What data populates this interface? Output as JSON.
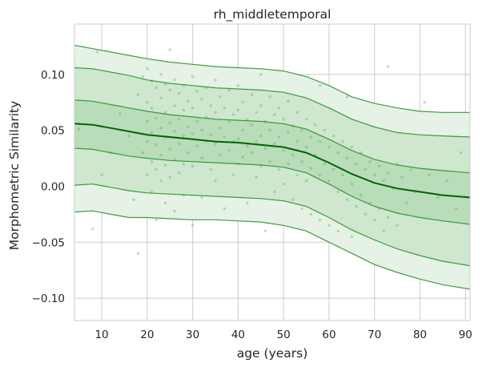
{
  "chart_data": {
    "type": "area",
    "title": "rh_middletemporal",
    "xlabel": "age (years)",
    "ylabel": "Morphometric Similarity",
    "xlim": [
      4,
      91
    ],
    "ylim": [
      -0.12,
      0.145
    ],
    "xticks": [
      10,
      20,
      30,
      40,
      50,
      60,
      70,
      80,
      90
    ],
    "xtick_labels": [
      "10",
      "20",
      "30",
      "40",
      "50",
      "60",
      "70",
      "80",
      "90"
    ],
    "yticks": [
      -0.1,
      -0.05,
      0.0,
      0.05,
      0.1
    ],
    "ytick_labels": [
      "−0.10",
      "−0.05",
      "0.00",
      "0.05",
      "0.10"
    ],
    "grid": true,
    "colors": {
      "median": "#006400",
      "centile": "#228B22",
      "band_outer": "#e6f2e6",
      "band_mid": "#cfe7cf",
      "band_inner": "#b9dcb9",
      "points": "#4caf50",
      "grid": "#cccccc",
      "axes_bg": "#ffffff"
    },
    "centile_x": [
      4,
      8,
      12,
      16,
      20,
      25,
      30,
      35,
      40,
      45,
      50,
      55,
      60,
      65,
      70,
      75,
      80,
      85,
      91
    ],
    "centiles": [
      {
        "name": "p1",
        "values": [
          -0.023,
          -0.022,
          -0.025,
          -0.028,
          -0.028,
          -0.029,
          -0.03,
          -0.03,
          -0.031,
          -0.032,
          -0.035,
          -0.04,
          -0.05,
          -0.06,
          -0.07,
          -0.077,
          -0.083,
          -0.088,
          -0.092
        ]
      },
      {
        "name": "p5",
        "values": [
          0.001,
          0.002,
          -0.001,
          -0.004,
          -0.006,
          -0.007,
          -0.008,
          -0.009,
          -0.01,
          -0.011,
          -0.013,
          -0.018,
          -0.028,
          -0.039,
          -0.048,
          -0.056,
          -0.062,
          -0.067,
          -0.071
        ]
      },
      {
        "name": "p25",
        "values": [
          0.034,
          0.033,
          0.03,
          0.027,
          0.025,
          0.023,
          0.022,
          0.021,
          0.02,
          0.019,
          0.017,
          0.012,
          0.002,
          -0.009,
          -0.018,
          -0.024,
          -0.028,
          -0.031,
          -0.034
        ]
      },
      {
        "name": "p50",
        "values": [
          0.056,
          0.055,
          0.052,
          0.049,
          0.046,
          0.044,
          0.042,
          0.04,
          0.039,
          0.037,
          0.035,
          0.03,
          0.021,
          0.011,
          0.003,
          -0.002,
          -0.005,
          -0.008,
          -0.01
        ]
      },
      {
        "name": "p75",
        "values": [
          0.077,
          0.076,
          0.073,
          0.07,
          0.067,
          0.064,
          0.062,
          0.06,
          0.059,
          0.058,
          0.056,
          0.051,
          0.042,
          0.032,
          0.024,
          0.019,
          0.016,
          0.014,
          0.012
        ]
      },
      {
        "name": "p95",
        "values": [
          0.106,
          0.105,
          0.102,
          0.099,
          0.095,
          0.092,
          0.09,
          0.088,
          0.087,
          0.086,
          0.084,
          0.079,
          0.07,
          0.06,
          0.053,
          0.048,
          0.046,
          0.045,
          0.044
        ]
      },
      {
        "name": "p99",
        "values": [
          0.126,
          0.123,
          0.12,
          0.117,
          0.114,
          0.111,
          0.109,
          0.107,
          0.106,
          0.105,
          0.103,
          0.098,
          0.09,
          0.08,
          0.074,
          0.07,
          0.067,
          0.066,
          0.066
        ]
      }
    ],
    "scatter": [
      [
        5,
        0.051
      ],
      [
        8,
        -0.038
      ],
      [
        9,
        0.12
      ],
      [
        10,
        0.01
      ],
      [
        12,
        0.03
      ],
      [
        14,
        0.065
      ],
      [
        16,
        0.045
      ],
      [
        17,
        -0.012
      ],
      [
        18,
        0.082
      ],
      [
        19,
        0.098
      ],
      [
        19,
        0.03
      ],
      [
        20,
        0.105
      ],
      [
        20,
        0.075
      ],
      [
        20,
        0.058
      ],
      [
        20,
        0.01
      ],
      [
        20,
        0.04
      ],
      [
        21,
        0.094
      ],
      [
        21,
        0.07
      ],
      [
        21,
        0.048
      ],
      [
        21,
        0.022
      ],
      [
        21,
        -0.005
      ],
      [
        22,
        0.088
      ],
      [
        22,
        0.061
      ],
      [
        22,
        0.037
      ],
      [
        22,
        0.015
      ],
      [
        22,
        -0.03
      ],
      [
        23,
        0.1
      ],
      [
        23,
        0.079
      ],
      [
        23,
        0.052
      ],
      [
        23,
        0.028
      ],
      [
        23,
        0.005
      ],
      [
        24,
        0.091
      ],
      [
        24,
        0.066
      ],
      [
        24,
        0.044
      ],
      [
        24,
        0.019
      ],
      [
        24,
        -0.015
      ],
      [
        25,
        0.122
      ],
      [
        25,
        0.086
      ],
      [
        25,
        0.057
      ],
      [
        25,
        0.033
      ],
      [
        25,
        0.008
      ],
      [
        26,
        0.095
      ],
      [
        26,
        0.072
      ],
      [
        26,
        0.049
      ],
      [
        26,
        0.024
      ],
      [
        26,
        -0.022
      ],
      [
        27,
        0.083
      ],
      [
        27,
        0.06
      ],
      [
        27,
        0.038
      ],
      [
        27,
        0.012
      ],
      [
        28,
        0.09
      ],
      [
        28,
        0.068
      ],
      [
        28,
        0.045
      ],
      [
        28,
        0.02
      ],
      [
        28,
        -0.008
      ],
      [
        29,
        0.076
      ],
      [
        29,
        0.053
      ],
      [
        29,
        0.03
      ],
      [
        30,
        0.098
      ],
      [
        30,
        0.07
      ],
      [
        30,
        0.047
      ],
      [
        30,
        0.018
      ],
      [
        30,
        -0.035
      ],
      [
        31,
        0.085
      ],
      [
        31,
        0.058
      ],
      [
        31,
        0.036
      ],
      [
        32,
        0.078
      ],
      [
        32,
        0.05
      ],
      [
        32,
        0.025
      ],
      [
        32,
        -0.01
      ],
      [
        33,
        0.088
      ],
      [
        33,
        0.062
      ],
      [
        33,
        0.04
      ],
      [
        34,
        0.072
      ],
      [
        34,
        0.046
      ],
      [
        34,
        0.015
      ],
      [
        35,
        0.095
      ],
      [
        35,
        0.066
      ],
      [
        35,
        0.038
      ],
      [
        35,
        0.005
      ],
      [
        36,
        0.08
      ],
      [
        36,
        0.052
      ],
      [
        36,
        0.028
      ],
      [
        37,
        0.07
      ],
      [
        37,
        0.044
      ],
      [
        37,
        -0.02
      ],
      [
        38,
        0.086
      ],
      [
        38,
        0.058
      ],
      [
        38,
        0.032
      ],
      [
        39,
        0.064
      ],
      [
        39,
        0.04
      ],
      [
        39,
        0.01
      ],
      [
        40,
        0.09
      ],
      [
        40,
        0.068
      ],
      [
        40,
        0.042
      ],
      [
        40,
        0.02
      ],
      [
        41,
        0.075
      ],
      [
        41,
        0.05
      ],
      [
        41,
        0.026
      ],
      [
        42,
        0.06
      ],
      [
        42,
        0.036
      ],
      [
        42,
        -0.015
      ],
      [
        43,
        0.082
      ],
      [
        43,
        0.055
      ],
      [
        43,
        0.03
      ],
      [
        44,
        0.066
      ],
      [
        44,
        0.04
      ],
      [
        44,
        0.008
      ],
      [
        45,
        0.1
      ],
      [
        45,
        0.072
      ],
      [
        45,
        0.045
      ],
      [
        45,
        0.018
      ],
      [
        46,
        0.058
      ],
      [
        46,
        0.034
      ],
      [
        47,
        0.08
      ],
      [
        47,
        0.05
      ],
      [
        47,
        0.022
      ],
      [
        48,
        0.064
      ],
      [
        48,
        0.038
      ],
      [
        48,
        -0.005
      ],
      [
        49,
        0.07
      ],
      [
        49,
        0.044
      ],
      [
        49,
        0.015
      ],
      [
        50,
        0.06
      ],
      [
        50,
        0.032
      ],
      [
        50,
        0.002
      ],
      [
        51,
        0.076
      ],
      [
        51,
        0.048
      ],
      [
        51,
        0.02
      ],
      [
        52,
        0.054
      ],
      [
        52,
        0.028
      ],
      [
        52,
        -0.012
      ],
      [
        53,
        0.066
      ],
      [
        53,
        0.04
      ],
      [
        53,
        0.01
      ],
      [
        54,
        0.05
      ],
      [
        54,
        0.022
      ],
      [
        54,
        -0.02
      ],
      [
        55,
        0.06
      ],
      [
        55,
        0.035
      ],
      [
        55,
        0.005
      ],
      [
        56,
        0.044
      ],
      [
        56,
        0.016
      ],
      [
        56,
        -0.025
      ],
      [
        57,
        0.055
      ],
      [
        57,
        0.028
      ],
      [
        58,
        0.04
      ],
      [
        58,
        0.01
      ],
      [
        58,
        -0.03
      ],
      [
        59,
        0.05
      ],
      [
        59,
        0.02
      ],
      [
        60,
        0.035
      ],
      [
        60,
        0.005
      ],
      [
        60,
        -0.035
      ],
      [
        61,
        0.045
      ],
      [
        61,
        0.015
      ],
      [
        62,
        0.03
      ],
      [
        62,
        -0.005
      ],
      [
        62,
        -0.04
      ],
      [
        63,
        0.04
      ],
      [
        63,
        0.01
      ],
      [
        64,
        0.025
      ],
      [
        64,
        -0.012
      ],
      [
        65,
        0.035
      ],
      [
        65,
        0.002
      ],
      [
        65,
        -0.045
      ],
      [
        66,
        0.02
      ],
      [
        66,
        -0.018
      ],
      [
        67,
        0.03
      ],
      [
        67,
        -0.008
      ],
      [
        68,
        0.015
      ],
      [
        68,
        -0.025
      ],
      [
        69,
        0.022
      ],
      [
        69,
        -0.015
      ],
      [
        70,
        0.01
      ],
      [
        70,
        -0.03
      ],
      [
        71,
        0.018
      ],
      [
        71,
        -0.02
      ],
      [
        72,
        0.005
      ],
      [
        72,
        -0.04
      ],
      [
        73,
        0.107
      ],
      [
        73,
        0.012
      ],
      [
        73,
        -0.028
      ],
      [
        74,
        -0.002
      ],
      [
        75,
        0.02
      ],
      [
        75,
        -0.035
      ],
      [
        76,
        0.008
      ],
      [
        77,
        -0.015
      ],
      [
        78,
        0.015
      ],
      [
        79,
        -0.005
      ],
      [
        81,
        0.075
      ],
      [
        82,
        0.01
      ],
      [
        84,
        -0.01
      ],
      [
        86,
        0.005
      ],
      [
        88,
        -0.02
      ],
      [
        89,
        0.03
      ],
      [
        18,
        -0.06
      ],
      [
        58,
        0.09
      ],
      [
        64,
        0.08
      ],
      [
        46,
        -0.04
      ]
    ]
  }
}
